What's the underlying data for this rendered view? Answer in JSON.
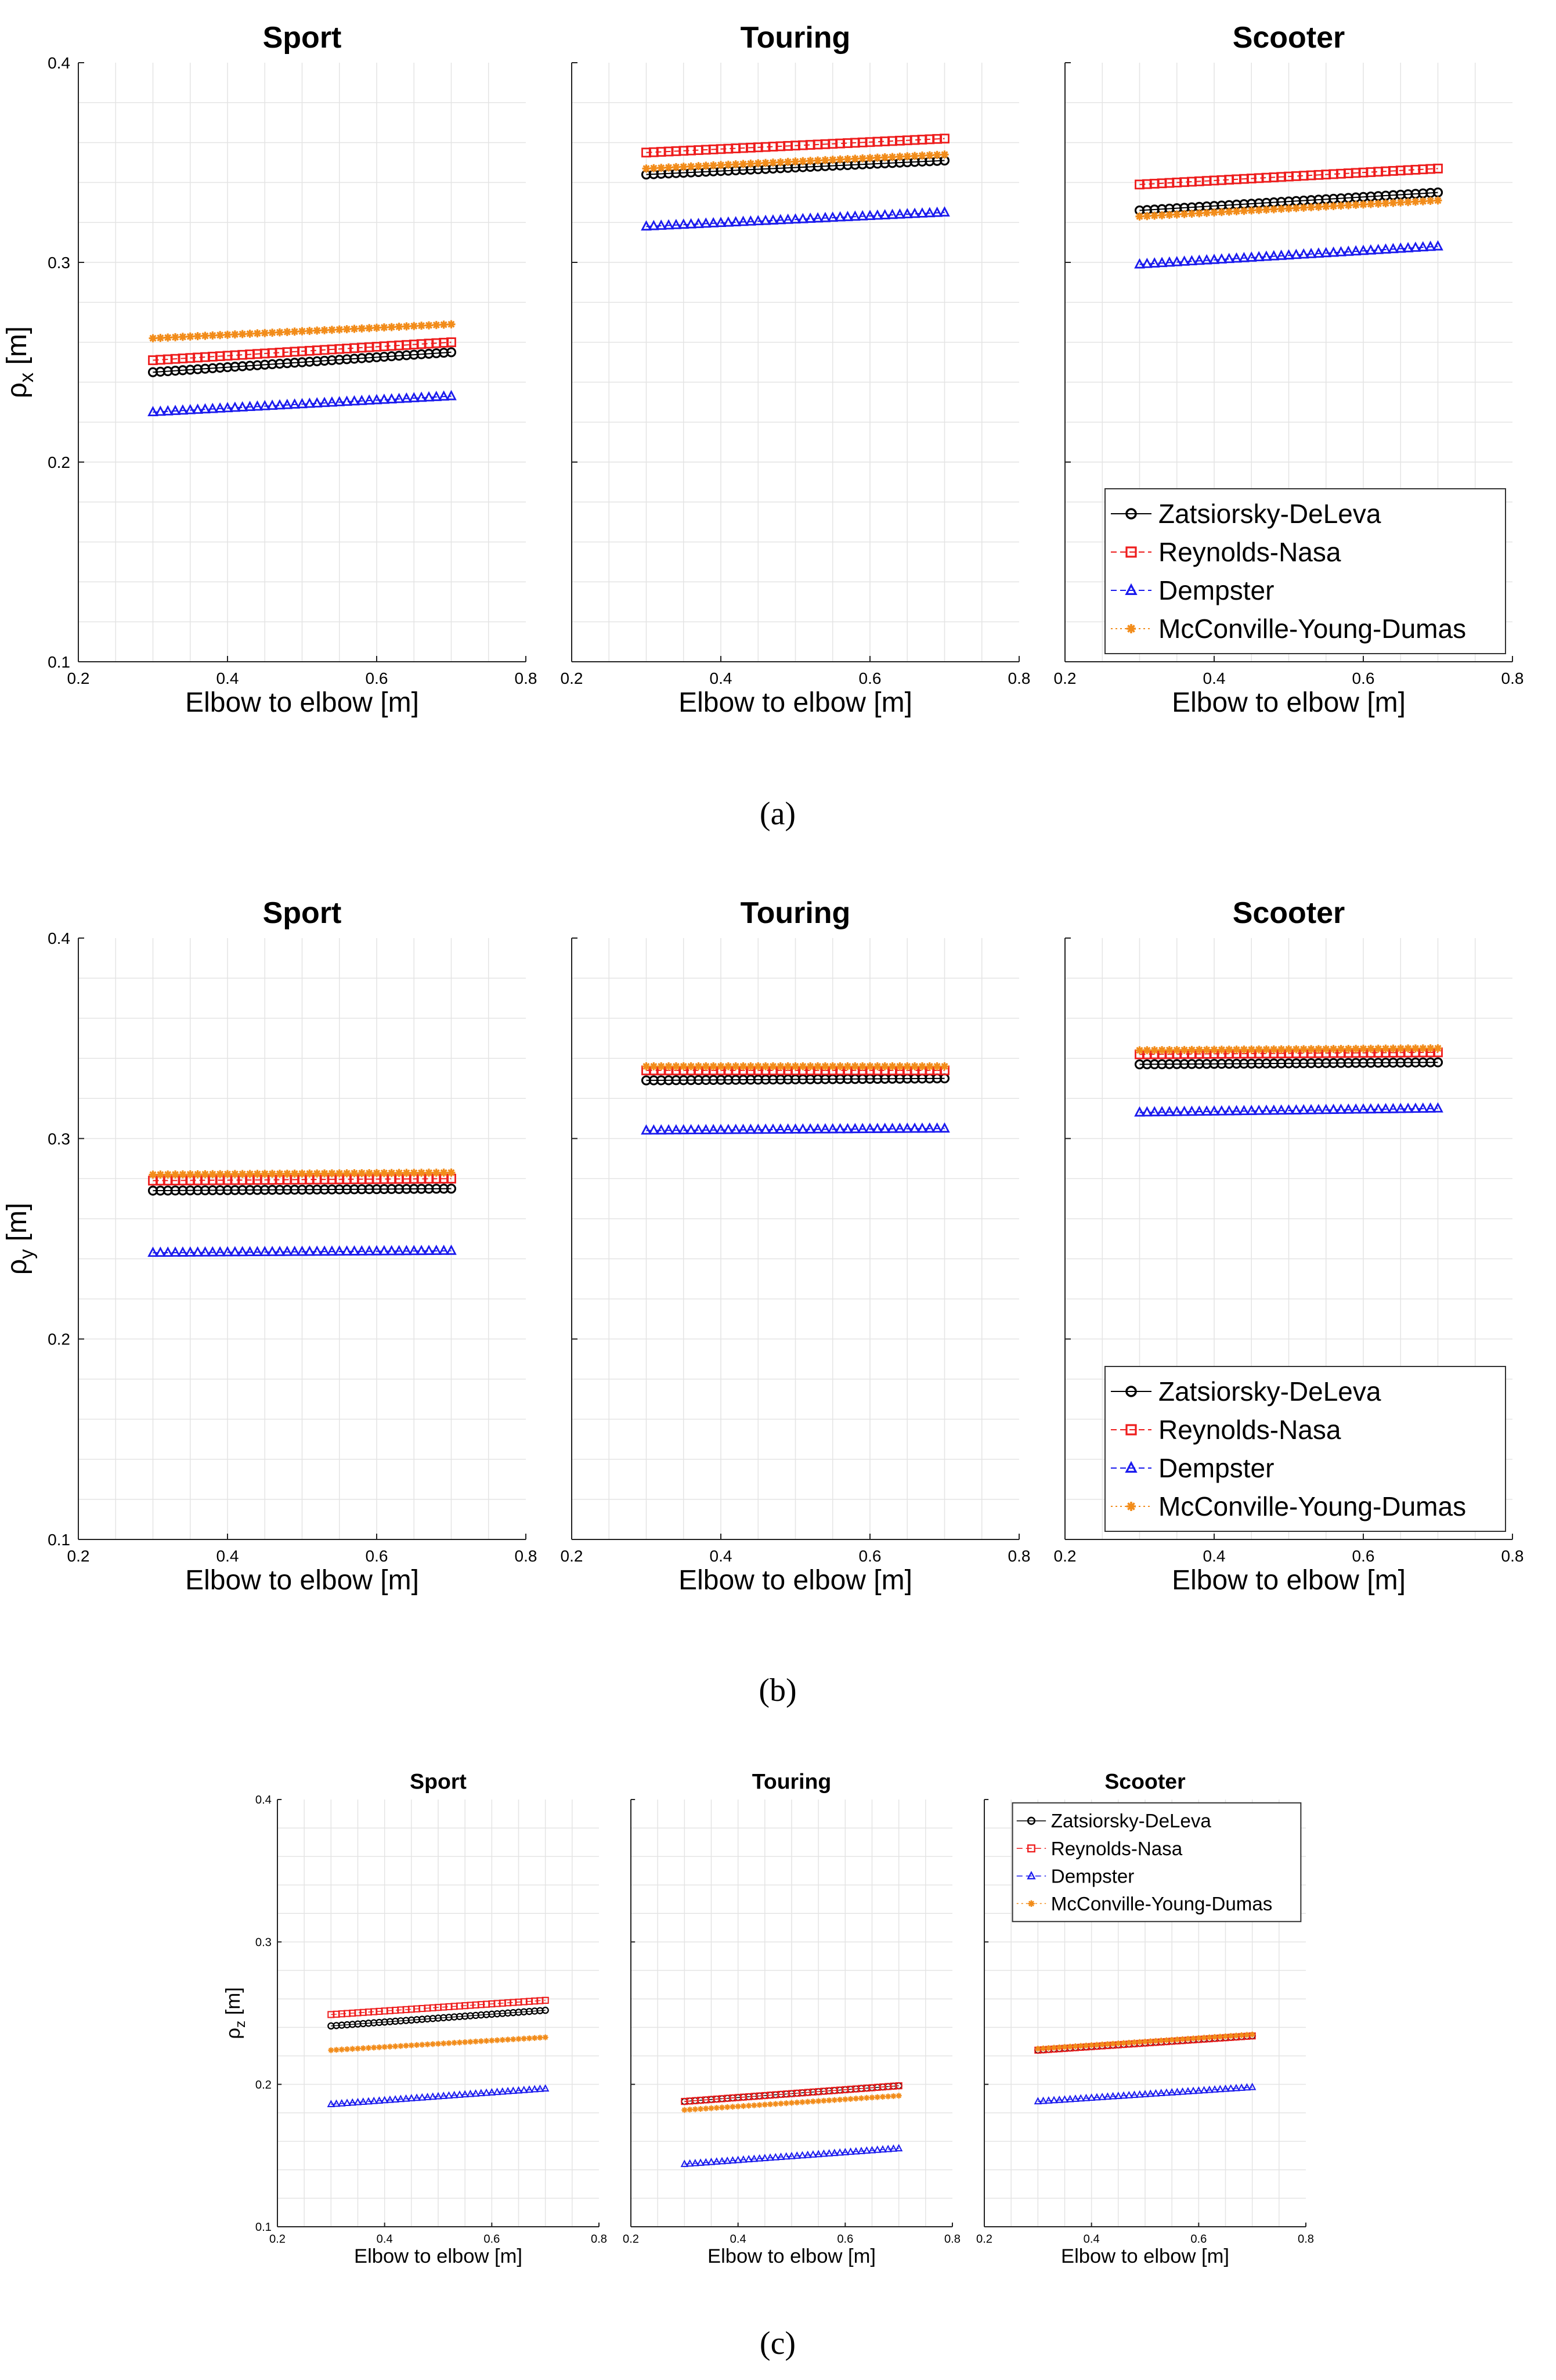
{
  "colors": {
    "Zatsiorsky-DeLeva": "#000000",
    "Reynolds-Nasa": "#ee1c1c",
    "Dempster": "#1a1aee",
    "McConville-Young-Dumas": "#f28c1a",
    "grid": "#e4e4e4",
    "axis": "#222222"
  },
  "series_style": {
    "Zatsiorsky-DeLeva": {
      "marker": "circle",
      "line": "solid"
    },
    "Reynolds-Nasa": {
      "marker": "square",
      "line": "dashed"
    },
    "Dempster": {
      "marker": "triangle",
      "line": "dashed"
    },
    "McConville-Young-Dumas": {
      "marker": "star",
      "line": "dotted"
    }
  },
  "captions": {
    "a": "(a)",
    "b": "(b)",
    "c": "(c)"
  },
  "chart_data": [
    {
      "id": "a-sport",
      "type": "line",
      "title": "Sport",
      "xlabel": "Elbow to elbow [m]",
      "ylabel_base": "ρ",
      "ylabel_sub": "x",
      "ylabel_unit": "[m]",
      "xlim": [
        0.2,
        0.8
      ],
      "ylim": [
        0.1,
        0.4
      ],
      "xticks": [
        "0.2",
        "0.4",
        "0.6",
        "0.8"
      ],
      "yticks": [
        "0.1",
        "0.2",
        "0.3",
        "0.4"
      ],
      "x_range": [
        0.3,
        0.7
      ],
      "series": [
        {
          "name": "Zatsiorsky-DeLeva",
          "y_start": 0.245,
          "y_end": 0.255
        },
        {
          "name": "Reynolds-Nasa",
          "y_start": 0.251,
          "y_end": 0.26
        },
        {
          "name": "Dempster",
          "y_start": 0.225,
          "y_end": 0.233
        },
        {
          "name": "McConville-Young-Dumas",
          "y_start": 0.262,
          "y_end": 0.269
        }
      ]
    },
    {
      "id": "a-touring",
      "type": "line",
      "title": "Touring",
      "xlabel": "Elbow to elbow [m]",
      "xlim": [
        0.2,
        0.8
      ],
      "ylim": [
        0.1,
        0.4
      ],
      "xticks": [
        "0.2",
        "0.4",
        "0.6",
        "0.8"
      ],
      "x_range": [
        0.3,
        0.7
      ],
      "series": [
        {
          "name": "Zatsiorsky-DeLeva",
          "y_start": 0.344,
          "y_end": 0.351
        },
        {
          "name": "Reynolds-Nasa",
          "y_start": 0.355,
          "y_end": 0.362
        },
        {
          "name": "Dempster",
          "y_start": 0.318,
          "y_end": 0.325
        },
        {
          "name": "McConville-Young-Dumas",
          "y_start": 0.347,
          "y_end": 0.354
        }
      ]
    },
    {
      "id": "a-scooter",
      "type": "line",
      "title": "Scooter",
      "xlabel": "Elbow to elbow [m]",
      "xlim": [
        0.2,
        0.8
      ],
      "ylim": [
        0.1,
        0.4
      ],
      "xticks": [
        "0.2",
        "0.4",
        "0.6",
        "0.8"
      ],
      "x_range": [
        0.3,
        0.7
      ],
      "legend": "bottom-right",
      "series": [
        {
          "name": "Zatsiorsky-DeLeva",
          "y_start": 0.326,
          "y_end": 0.335
        },
        {
          "name": "Reynolds-Nasa",
          "y_start": 0.339,
          "y_end": 0.347
        },
        {
          "name": "Dempster",
          "y_start": 0.299,
          "y_end": 0.308
        },
        {
          "name": "McConville-Young-Dumas",
          "y_start": 0.323,
          "y_end": 0.331
        }
      ]
    },
    {
      "id": "b-sport",
      "type": "line",
      "title": "Sport",
      "xlabel": "Elbow to elbow [m]",
      "ylabel_base": "ρ",
      "ylabel_sub": "y",
      "ylabel_unit": "[m]",
      "xlim": [
        0.2,
        0.8
      ],
      "ylim": [
        0.1,
        0.4
      ],
      "xticks": [
        "0.2",
        "0.4",
        "0.6",
        "0.8"
      ],
      "yticks": [
        "0.1",
        "0.2",
        "0.3",
        "0.4"
      ],
      "x_range": [
        0.3,
        0.7
      ],
      "series": [
        {
          "name": "Zatsiorsky-DeLeva",
          "y_start": 0.274,
          "y_end": 0.275
        },
        {
          "name": "Reynolds-Nasa",
          "y_start": 0.279,
          "y_end": 0.28
        },
        {
          "name": "Dempster",
          "y_start": 0.243,
          "y_end": 0.244
        },
        {
          "name": "McConville-Young-Dumas",
          "y_start": 0.282,
          "y_end": 0.283
        }
      ]
    },
    {
      "id": "b-touring",
      "type": "line",
      "title": "Touring",
      "xlabel": "Elbow to elbow [m]",
      "xlim": [
        0.2,
        0.8
      ],
      "ylim": [
        0.1,
        0.4
      ],
      "xticks": [
        "0.2",
        "0.4",
        "0.6",
        "0.8"
      ],
      "x_range": [
        0.3,
        0.7
      ],
      "series": [
        {
          "name": "Zatsiorsky-DeLeva",
          "y_start": 0.329,
          "y_end": 0.33
        },
        {
          "name": "Reynolds-Nasa",
          "y_start": 0.334,
          "y_end": 0.334
        },
        {
          "name": "Dempster",
          "y_start": 0.304,
          "y_end": 0.305
        },
        {
          "name": "McConville-Young-Dumas",
          "y_start": 0.336,
          "y_end": 0.336
        }
      ]
    },
    {
      "id": "b-scooter",
      "type": "line",
      "title": "Scooter",
      "xlabel": "Elbow to elbow [m]",
      "xlim": [
        0.2,
        0.8
      ],
      "ylim": [
        0.1,
        0.4
      ],
      "xticks": [
        "0.2",
        "0.4",
        "0.6",
        "0.8"
      ],
      "x_range": [
        0.3,
        0.7
      ],
      "legend": "bottom-right",
      "series": [
        {
          "name": "Zatsiorsky-DeLeva",
          "y_start": 0.337,
          "y_end": 0.338
        },
        {
          "name": "Reynolds-Nasa",
          "y_start": 0.342,
          "y_end": 0.343
        },
        {
          "name": "Dempster",
          "y_start": 0.313,
          "y_end": 0.315
        },
        {
          "name": "McConville-Young-Dumas",
          "y_start": 0.344,
          "y_end": 0.345
        }
      ]
    },
    {
      "id": "c-sport",
      "type": "line",
      "title": "Sport",
      "xlabel": "Elbow to elbow [m]",
      "ylabel_base": "ρ",
      "ylabel_sub": "z",
      "ylabel_unit": "[m]",
      "xlim": [
        0.2,
        0.8
      ],
      "ylim": [
        0.1,
        0.4
      ],
      "xticks": [
        "0.2",
        "0.4",
        "0.6",
        "0.8"
      ],
      "yticks": [
        "0.1",
        "0.2",
        "0.3",
        "0.4"
      ],
      "x_range": [
        0.3,
        0.7
      ],
      "series": [
        {
          "name": "Zatsiorsky-DeLeva",
          "y_start": 0.241,
          "y_end": 0.252
        },
        {
          "name": "Reynolds-Nasa",
          "y_start": 0.249,
          "y_end": 0.259
        },
        {
          "name": "Dempster",
          "y_start": 0.186,
          "y_end": 0.197
        },
        {
          "name": "McConville-Young-Dumas",
          "y_start": 0.224,
          "y_end": 0.233
        }
      ]
    },
    {
      "id": "c-touring",
      "type": "line",
      "title": "Touring",
      "xlabel": "Elbow to elbow [m]",
      "xlim": [
        0.2,
        0.8
      ],
      "ylim": [
        0.1,
        0.4
      ],
      "xticks": [
        "0.2",
        "0.4",
        "0.6",
        "0.8"
      ],
      "x_range": [
        0.3,
        0.7
      ],
      "series": [
        {
          "name": "Zatsiorsky-DeLeva",
          "y_start": 0.188,
          "y_end": 0.199
        },
        {
          "name": "Reynolds-Nasa",
          "y_start": 0.188,
          "y_end": 0.199
        },
        {
          "name": "Dempster",
          "y_start": 0.144,
          "y_end": 0.155
        },
        {
          "name": "McConville-Young-Dumas",
          "y_start": 0.182,
          "y_end": 0.192
        }
      ]
    },
    {
      "id": "c-scooter",
      "type": "line",
      "title": "Scooter",
      "xlabel": "Elbow to elbow [m]",
      "xlim": [
        0.2,
        0.8
      ],
      "ylim": [
        0.1,
        0.4
      ],
      "xticks": [
        "0.2",
        "0.4",
        "0.6",
        "0.8"
      ],
      "x_range": [
        0.3,
        0.7
      ],
      "legend": "top-right",
      "series": [
        {
          "name": "Zatsiorsky-DeLeva",
          "y_start": 0.224,
          "y_end": 0.234
        },
        {
          "name": "Reynolds-Nasa",
          "y_start": 0.224,
          "y_end": 0.234
        },
        {
          "name": "Dempster",
          "y_start": 0.188,
          "y_end": 0.198
        },
        {
          "name": "McConville-Young-Dumas",
          "y_start": 0.225,
          "y_end": 0.235
        }
      ]
    }
  ]
}
